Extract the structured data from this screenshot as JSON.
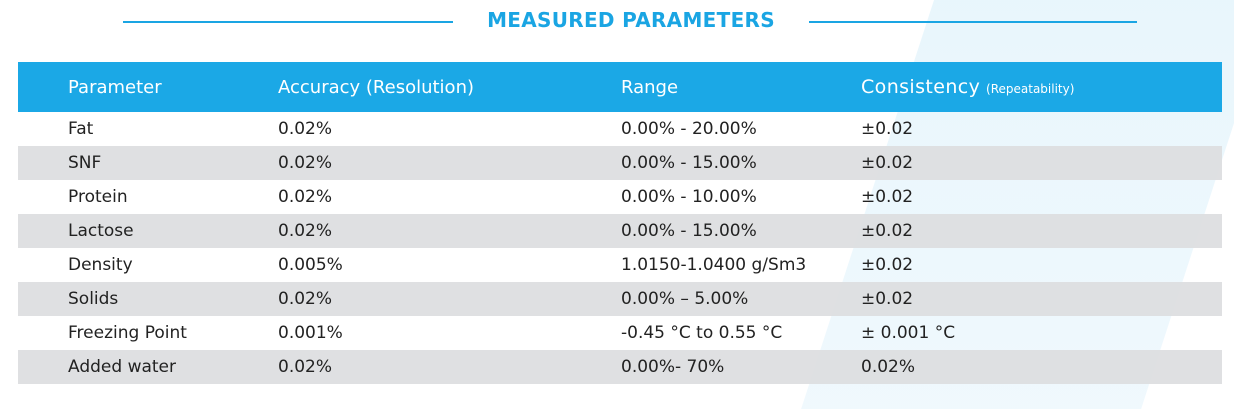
{
  "title": "MEASURED PARAMETERS",
  "colors": {
    "accent": "#1aa5e3",
    "header_bg": "#1ba8e6",
    "stripe_row": "#dcdddf"
  },
  "table": {
    "headers": {
      "parameter": "Parameter",
      "accuracy": "Accuracy (Resolution)",
      "range": "Range",
      "consistency": "Consistency",
      "consistency_sub": "(Repeatability)"
    },
    "rows": [
      {
        "parameter": "Fat",
        "accuracy": "0.02%",
        "range": "0.00% - 20.00%",
        "consistency": "±0.02"
      },
      {
        "parameter": "SNF",
        "accuracy": "0.02%",
        "range": "0.00% - 15.00%",
        "consistency": "±0.02"
      },
      {
        "parameter": "Protein",
        "accuracy": "0.02%",
        "range": "0.00% - 10.00%",
        "consistency": "±0.02"
      },
      {
        "parameter": "Lactose",
        "accuracy": "0.02%",
        "range": "0.00% - 15.00%",
        "consistency": "±0.02"
      },
      {
        "parameter": "Density",
        "accuracy": "0.005%",
        "range": "1.0150-1.0400 g/Sm3",
        "consistency": "±0.02"
      },
      {
        "parameter": "Solids",
        "accuracy": "0.02%",
        "range": "0.00% – 5.00%",
        "consistency": "±0.02"
      },
      {
        "parameter": "Freezing Point",
        "accuracy": "0.001%",
        "range": "-0.45 °C to 0.55 °C",
        "consistency": "± 0.001 °C"
      },
      {
        "parameter": "Added water",
        "accuracy": "0.02%",
        "range": "0.00%- 70%",
        "consistency": "0.02%"
      }
    ]
  }
}
